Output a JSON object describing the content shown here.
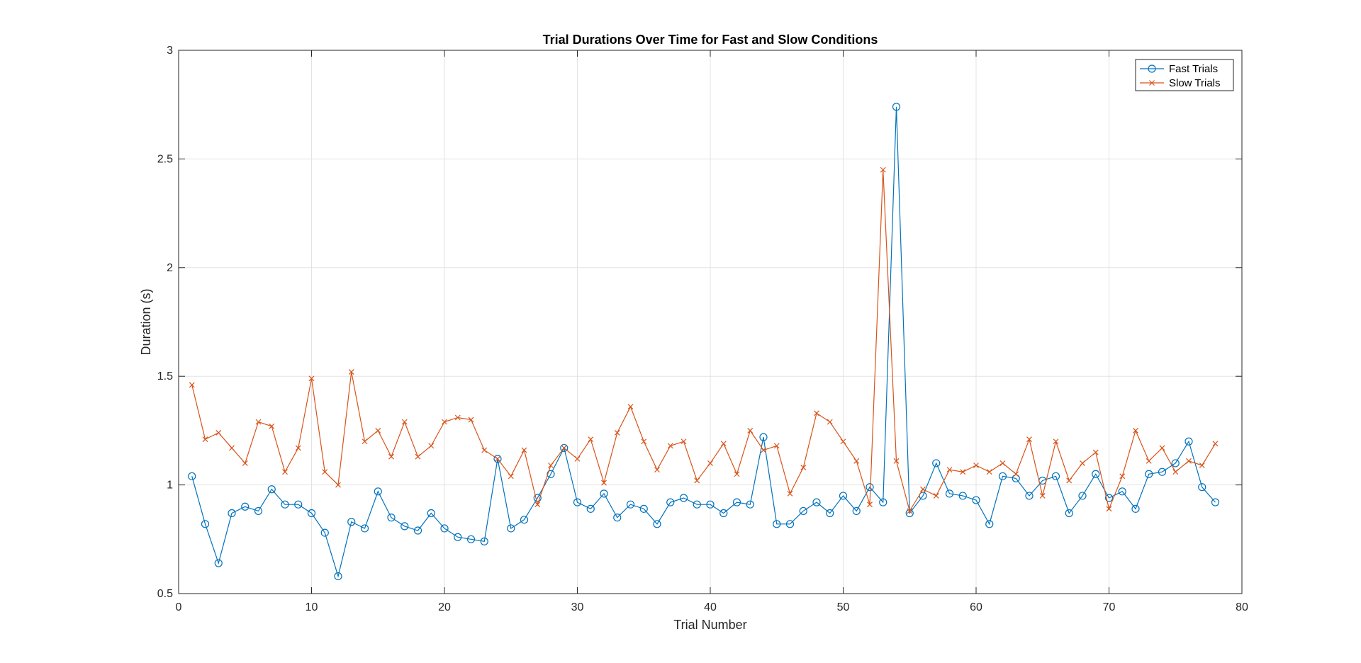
{
  "chart_data": {
    "type": "line",
    "title": "Trial Durations Over Time for Fast and Slow Conditions",
    "xlabel": "Trial Number",
    "ylabel": "Duration (s)",
    "xlim": [
      0,
      80
    ],
    "ylim": [
      0.5,
      3
    ],
    "xticks": [
      0,
      10,
      20,
      30,
      40,
      50,
      60,
      70,
      80
    ],
    "yticks": [
      0.5,
      1,
      1.5,
      2,
      2.5,
      3
    ],
    "ytick_labels": [
      "0.5",
      "1",
      "1.5",
      "2",
      "2.5",
      "3"
    ],
    "grid": true,
    "legend_position": "top-right",
    "x": [
      1,
      2,
      3,
      4,
      5,
      6,
      7,
      8,
      9,
      10,
      11,
      12,
      13,
      14,
      15,
      16,
      17,
      18,
      19,
      20,
      21,
      22,
      23,
      24,
      25,
      26,
      27,
      28,
      29,
      30,
      31,
      32,
      33,
      34,
      35,
      36,
      37,
      38,
      39,
      40,
      41,
      42,
      43,
      44,
      45,
      46,
      47,
      48,
      49,
      50,
      51,
      52,
      53,
      54,
      55,
      56,
      57,
      58,
      59,
      60,
      61,
      62,
      63,
      64,
      65,
      66,
      67,
      68,
      69,
      70,
      71,
      72,
      73,
      74,
      75,
      76,
      77,
      78
    ],
    "series": [
      {
        "name": "Fast Trials",
        "color": "#0072BD",
        "marker": "circle",
        "values": [
          1.04,
          0.82,
          0.64,
          0.87,
          0.9,
          0.88,
          0.98,
          0.91,
          0.91,
          0.87,
          0.78,
          0.58,
          0.83,
          0.8,
          0.97,
          0.85,
          0.81,
          0.79,
          0.87,
          0.8,
          0.76,
          0.75,
          0.74,
          1.12,
          0.8,
          0.84,
          0.94,
          1.05,
          1.17,
          0.92,
          0.89,
          0.96,
          0.85,
          0.91,
          0.89,
          0.82,
          0.92,
          0.94,
          0.91,
          0.91,
          0.87,
          0.92,
          0.91,
          1.22,
          0.82,
          0.82,
          0.88,
          0.92,
          0.87,
          0.95,
          0.88,
          0.99,
          0.92,
          2.74,
          0.87,
          0.95,
          1.1,
          0.96,
          0.95,
          0.93,
          0.82,
          1.04,
          1.03,
          0.95,
          1.02,
          1.04,
          0.87,
          0.95,
          1.05,
          0.94,
          0.97,
          0.89,
          1.05,
          1.06,
          1.1,
          1.2,
          0.99,
          0.92
        ]
      },
      {
        "name": "Slow Trials",
        "color": "#D95319",
        "marker": "x",
        "values": [
          1.46,
          1.21,
          1.24,
          1.17,
          1.1,
          1.29,
          1.27,
          1.06,
          1.17,
          1.49,
          1.06,
          1.0,
          1.52,
          1.2,
          1.25,
          1.13,
          1.29,
          1.13,
          1.18,
          1.29,
          1.31,
          1.3,
          1.16,
          1.12,
          1.04,
          1.16,
          0.91,
          1.09,
          1.17,
          1.12,
          1.21,
          1.01,
          1.24,
          1.36,
          1.2,
          1.07,
          1.18,
          1.2,
          1.02,
          1.1,
          1.19,
          1.05,
          1.25,
          1.16,
          1.18,
          0.96,
          1.08,
          1.33,
          1.29,
          1.2,
          1.11,
          0.91,
          2.45,
          1.11,
          0.88,
          0.98,
          0.95,
          1.07,
          1.06,
          1.09,
          1.06,
          1.1,
          1.05,
          1.21,
          0.95,
          1.2,
          1.02,
          1.1,
          1.15,
          0.89,
          1.04,
          1.25,
          1.11,
          1.17,
          1.06,
          1.11,
          1.09,
          1.19
        ]
      }
    ]
  }
}
